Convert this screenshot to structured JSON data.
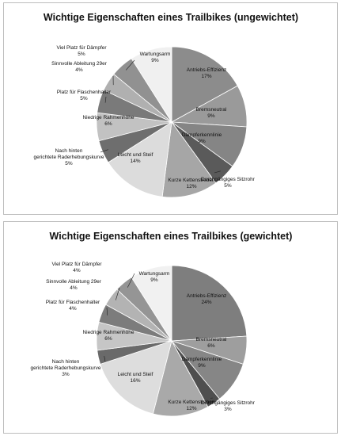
{
  "chart_data": [
    {
      "type": "pie",
      "title": "Wichtige Eigenschaften eines Trailbikes (ungewichtet)",
      "slices": [
        {
          "label": "Antriebs-Effizienz",
          "value": 17,
          "value_label": "17%",
          "color": "#8c8c8c"
        },
        {
          "label": "Bremsneutral",
          "value": 9,
          "value_label": "9%",
          "color": "#9a9a9a"
        },
        {
          "label": "Dämpferkennlinie",
          "value": 9,
          "value_label": "9%",
          "color": "#858585"
        },
        {
          "label": "Durchgängiges Sitzrohr",
          "value": 5,
          "value_label": "5%",
          "color": "#5a5a5a"
        },
        {
          "label": "Kurze Kettenstreben",
          "value": 12,
          "value_label": "12%",
          "color": "#a6a6a6"
        },
        {
          "label": "Leicht und Steif",
          "value": 14,
          "value_label": "14%",
          "color": "#dcdcdc"
        },
        {
          "label": "Nach hinten gerichtete Raderhebungskurve",
          "value": 5,
          "value_label": "5%",
          "color": "#6e6e6e"
        },
        {
          "label": "Niedrige Rahmenhöhe",
          "value": 6,
          "value_label": "6%",
          "color": "#c2c2c2"
        },
        {
          "label": "Platz für Flaschenhalter",
          "value": 5,
          "value_label": "5%",
          "color": "#7a7a7a"
        },
        {
          "label": "Sinnvolle Ableitung 29er",
          "value": 4,
          "value_label": "4%",
          "color": "#b0b0b0"
        },
        {
          "label": "Viel Platz für Dämpfer",
          "value": 5,
          "value_label": "5%",
          "color": "#919191"
        },
        {
          "label": "Wartungsarm",
          "value": 9,
          "value_label": "9%",
          "color": "#f0f0f0"
        }
      ]
    },
    {
      "type": "pie",
      "title": "Wichtige Eigenschaften eines Trailbikes (gewichtet)",
      "slices": [
        {
          "label": "Antriebs-Effizienz",
          "value": 24,
          "value_label": "24%",
          "color": "#7e7e7e"
        },
        {
          "label": "Bremsneutral",
          "value": 6,
          "value_label": "6%",
          "color": "#9e9e9e"
        },
        {
          "label": "Dämpferkennlinie",
          "value": 9,
          "value_label": "9%",
          "color": "#868686"
        },
        {
          "label": "Durchgängiges Sitzrohr",
          "value": 3,
          "value_label": "3%",
          "color": "#4f4f4f"
        },
        {
          "label": "Kurze Kettenstreben",
          "value": 12,
          "value_label": "12%",
          "color": "#a9a9a9"
        },
        {
          "label": "Leicht und Steif",
          "value": 16,
          "value_label": "16%",
          "color": "#dddddd"
        },
        {
          "label": "Nach hinten gerichtete Raderhebungskurve",
          "value": 3,
          "value_label": "3%",
          "color": "#6a6a6a"
        },
        {
          "label": "Niedrige Rahmenhöhe",
          "value": 6,
          "value_label": "6%",
          "color": "#c6c6c6"
        },
        {
          "label": "Platz für Flaschenhalter",
          "value": 4,
          "value_label": "4%",
          "color": "#7c7c7c"
        },
        {
          "label": "Sinnvolle Ableitung 29er",
          "value": 4,
          "value_label": "4%",
          "color": "#b3b3b3"
        },
        {
          "label": "Viel Platz für Dämpfer",
          "value": 4,
          "value_label": "4%",
          "color": "#959595"
        },
        {
          "label": "Wartungsarm",
          "value": 9,
          "value_label": "9%",
          "color": "#f1f1f1"
        }
      ]
    }
  ]
}
